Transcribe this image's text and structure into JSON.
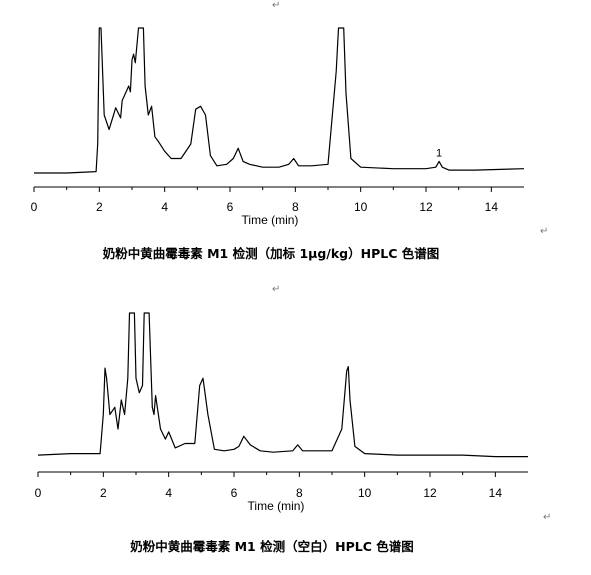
{
  "chart_data": [
    {
      "type": "line",
      "xlabel": "Time (min)",
      "xlim": [
        0,
        15
      ],
      "x_ticks": [
        "0",
        "2",
        "4",
        "6",
        "8",
        "10",
        "12",
        "14"
      ],
      "caption": "奶粉中黄曲霉毒素 M1 检测（加标 1μg/kg）HPLC 色谱图",
      "annotations": [
        {
          "text": "1",
          "x": 12.4
        }
      ],
      "series": [
        {
          "x": [
            0.0,
            1.0,
            1.9,
            1.95,
            2.0,
            2.05,
            2.15,
            2.3,
            2.5,
            2.65,
            2.7,
            2.8,
            2.9,
            2.95,
            3.0,
            3.05,
            3.1,
            3.2,
            3.25,
            3.3,
            3.35,
            3.4,
            3.5,
            3.6,
            3.7,
            3.8,
            4.0,
            4.2,
            4.5,
            4.8,
            4.95,
            5.1,
            5.25,
            5.4,
            5.6,
            5.9,
            6.1,
            6.25,
            6.4,
            6.6,
            7.0,
            7.5,
            7.8,
            7.95,
            8.1,
            8.5,
            9.0,
            9.25,
            9.32,
            9.4,
            9.48,
            9.55,
            9.7,
            10.0,
            11.0,
            12.0,
            12.3,
            12.4,
            12.5,
            12.7,
            13.5,
            15.0
          ],
          "y": [
            0.0,
            0.0,
            0.01,
            0.2,
            1.0,
            1.0,
            0.4,
            0.3,
            0.45,
            0.38,
            0.5,
            0.55,
            0.6,
            0.56,
            0.78,
            0.82,
            0.76,
            1.0,
            1.0,
            1.0,
            1.0,
            0.6,
            0.4,
            0.46,
            0.25,
            0.22,
            0.15,
            0.1,
            0.1,
            0.2,
            0.44,
            0.46,
            0.4,
            0.12,
            0.05,
            0.06,
            0.1,
            0.17,
            0.08,
            0.06,
            0.04,
            0.04,
            0.06,
            0.1,
            0.05,
            0.05,
            0.06,
            0.7,
            1.0,
            1.0,
            1.0,
            0.55,
            0.1,
            0.04,
            0.03,
            0.03,
            0.04,
            0.08,
            0.04,
            0.02,
            0.02,
            0.03
          ]
        }
      ]
    },
    {
      "type": "line",
      "xlabel": "Time (min)",
      "xlim": [
        0,
        15
      ],
      "x_ticks": [
        "0",
        "2",
        "4",
        "6",
        "8",
        "10",
        "12",
        "14"
      ],
      "caption": "奶粉中黄曲霉毒素 M1 检测（空白）HPLC 色谱图",
      "series": [
        {
          "x": [
            0.0,
            1.0,
            1.9,
            2.0,
            2.05,
            2.1,
            2.2,
            2.35,
            2.45,
            2.55,
            2.65,
            2.75,
            2.8,
            2.9,
            2.95,
            3.0,
            3.1,
            3.2,
            3.25,
            3.35,
            3.4,
            3.5,
            3.55,
            3.6,
            3.75,
            3.9,
            4.0,
            4.2,
            4.5,
            4.8,
            4.95,
            5.05,
            5.2,
            5.4,
            5.7,
            6.0,
            6.15,
            6.3,
            6.5,
            6.8,
            7.2,
            7.8,
            7.95,
            8.1,
            8.5,
            9.0,
            9.3,
            9.45,
            9.5,
            9.55,
            9.7,
            10.0,
            11.0,
            12.0,
            13.0,
            14.0,
            15.0
          ],
          "y": [
            0.02,
            0.03,
            0.03,
            0.3,
            0.62,
            0.55,
            0.3,
            0.35,
            0.2,
            0.4,
            0.3,
            0.55,
            1.0,
            1.0,
            1.0,
            0.55,
            0.45,
            0.5,
            1.0,
            1.0,
            1.0,
            0.35,
            0.3,
            0.43,
            0.2,
            0.13,
            0.18,
            0.07,
            0.1,
            0.1,
            0.5,
            0.55,
            0.3,
            0.06,
            0.05,
            0.06,
            0.08,
            0.15,
            0.09,
            0.05,
            0.04,
            0.05,
            0.09,
            0.05,
            0.05,
            0.05,
            0.2,
            0.6,
            0.63,
            0.4,
            0.08,
            0.03,
            0.02,
            0.02,
            0.02,
            0.01,
            0.01
          ]
        }
      ]
    }
  ]
}
